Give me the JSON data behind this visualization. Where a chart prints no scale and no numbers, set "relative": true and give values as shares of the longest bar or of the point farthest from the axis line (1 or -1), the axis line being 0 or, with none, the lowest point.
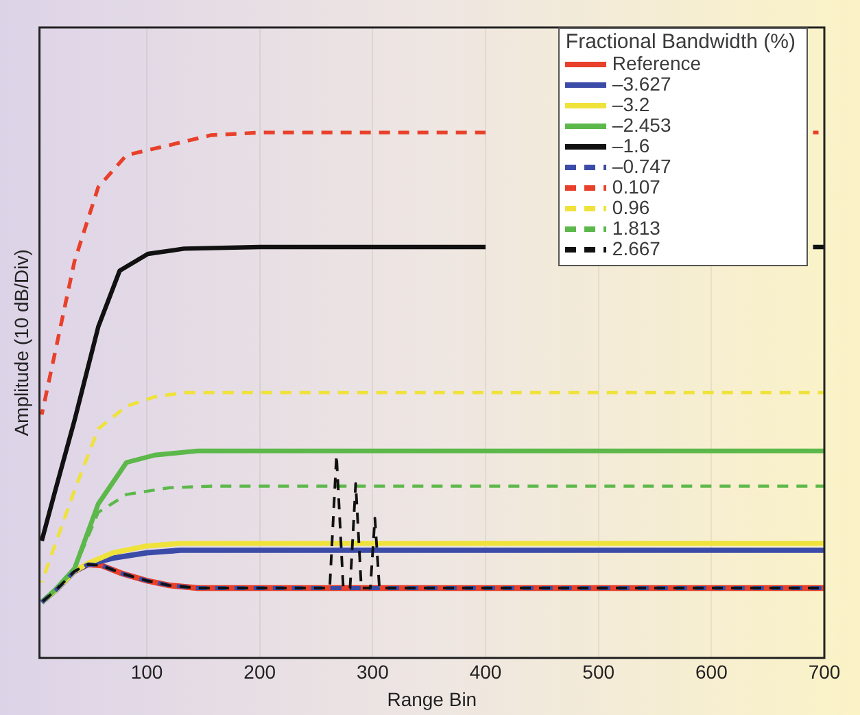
{
  "chart_data": {
    "type": "line",
    "xlabel": "Range Bin",
    "ylabel": "Amplitude (10 dB/Div)",
    "legend_title": "Fractional Bandwidth (%)",
    "legend": "top right",
    "grid": "x",
    "relative": true,
    "marker": "none",
    "xlim": [
      5,
      700
    ],
    "xticks": [
      100,
      200,
      300,
      400,
      500,
      600,
      700
    ],
    "series": [
      {
        "name": "Reference",
        "color": "#e8402a",
        "line_style": "solid",
        "x": [
          36,
          48,
          60,
          79,
          100,
          120,
          145,
          200,
          300,
          400,
          500,
          600,
          700
        ],
        "values": [
          0.165,
          0.178,
          0.176,
          0.16,
          0.147,
          0.138,
          0.133,
          0.133,
          0.133,
          0.133,
          0.133,
          0.133,
          0.133
        ]
      },
      {
        "name": "–3.627",
        "color": "#3b4ba8",
        "line_style": "solid",
        "x": [
          7,
          20,
          36,
          48,
          70,
          100,
          130,
          200,
          300,
          400,
          500,
          600,
          700
        ],
        "values": [
          0.106,
          0.13,
          0.165,
          0.178,
          0.19,
          0.2,
          0.205,
          0.205,
          0.205,
          0.205,
          0.205,
          0.205,
          0.205
        ]
      },
      {
        "name": "–3.2",
        "color": "#efe23a",
        "line_style": "solid",
        "x": [
          7,
          20,
          36,
          48,
          70,
          100,
          130,
          200,
          300,
          400,
          500,
          600,
          700
        ],
        "values": [
          0.106,
          0.13,
          0.165,
          0.18,
          0.2,
          0.213,
          0.218,
          0.218,
          0.218,
          0.218,
          0.218,
          0.218,
          0.218
        ]
      },
      {
        "name": "–2.453",
        "color": "#5cb84a",
        "line_style": "solid",
        "x": [
          7,
          19,
          36,
          57,
          82,
          107,
          145,
          200,
          300,
          400,
          500,
          600,
          700
        ],
        "values": [
          0.106,
          0.13,
          0.17,
          0.293,
          0.372,
          0.386,
          0.394,
          0.394,
          0.394,
          0.394,
          0.394,
          0.394,
          0.394
        ]
      },
      {
        "name": "–1.6",
        "color": "#111111",
        "line_style": "solid",
        "x": [
          7,
          19,
          36,
          57,
          76,
          101,
          133,
          200,
          300,
          400,
          550,
          690,
          700
        ],
        "values": [
          0.223,
          0.319,
          0.452,
          0.63,
          0.737,
          0.769,
          0.779,
          0.782,
          0.782,
          0.782,
          null,
          0.782,
          0.782
        ]
      },
      {
        "name": "–0.747",
        "color": "#3b4ba8",
        "line_style": "dashed",
        "x": [
          7,
          20,
          36,
          48,
          60,
          79,
          100,
          120,
          145,
          200,
          300,
          400,
          500,
          600,
          700
        ],
        "values": [
          0.106,
          0.13,
          0.165,
          0.178,
          0.176,
          0.16,
          0.147,
          0.138,
          0.133,
          0.133,
          0.133,
          0.133,
          0.133,
          0.133,
          0.133
        ]
      },
      {
        "name": "0.107",
        "color": "#e8402a",
        "line_style": "dashed",
        "x": [
          7,
          36,
          57,
          82,
          120,
          157,
          200,
          300,
          400,
          550,
          690,
          700
        ],
        "values": [
          0.463,
          0.755,
          0.896,
          0.957,
          0.976,
          0.995,
          1,
          1,
          1,
          null,
          1,
          1
        ]
      },
      {
        "name": "0.96",
        "color": "#efe23a",
        "line_style": "dashed",
        "x": [
          7,
          36,
          57,
          82,
          107,
          133,
          200,
          300,
          400,
          500,
          600,
          700
        ],
        "values": [
          0.144,
          0.319,
          0.436,
          0.479,
          0.497,
          0.505,
          0.505,
          0.505,
          0.505,
          0.505,
          0.505,
          0.505
        ]
      },
      {
        "name": "1.813",
        "color": "#5cb84a",
        "line_style": "dashed",
        "x": [
          7,
          20,
          36,
          57,
          82,
          120,
          160,
          200,
          300,
          400,
          500,
          600,
          700
        ],
        "values": [
          0.106,
          0.13,
          0.17,
          0.277,
          0.311,
          0.324,
          0.327,
          0.327,
          0.327,
          0.327,
          0.327,
          0.327,
          0.327
        ]
      },
      {
        "name": "2.667",
        "color": "#111111",
        "line_style": "dashed",
        "x": [
          7,
          20,
          36,
          48,
          60,
          79,
          100,
          120,
          145,
          200,
          262,
          268,
          274,
          280,
          285,
          290,
          298,
          302,
          306,
          400,
          500,
          600,
          700
        ],
        "values": [
          0.106,
          0.13,
          0.165,
          0.178,
          0.176,
          0.16,
          0.147,
          0.138,
          0.133,
          0.133,
          0.133,
          0.386,
          0.133,
          0.133,
          0.332,
          0.133,
          0.133,
          0.266,
          0.133,
          0.133,
          0.133,
          0.133,
          0.133
        ]
      }
    ]
  }
}
